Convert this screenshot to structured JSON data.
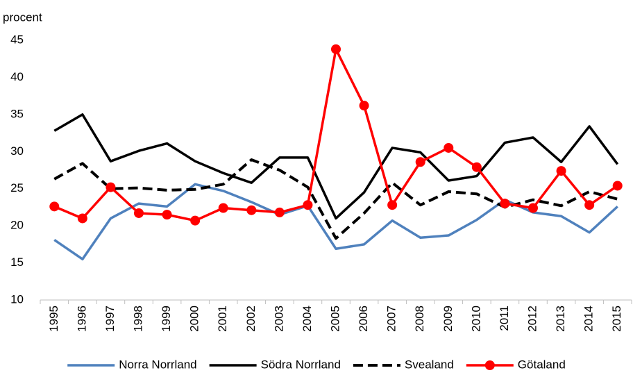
{
  "chart_data": {
    "type": "line",
    "y_label": "procent",
    "categories": [
      "1995",
      "1996",
      "1997",
      "1998",
      "1999",
      "2000",
      "2001",
      "2002",
      "2003",
      "2004",
      "2005",
      "2006",
      "2007",
      "2008",
      "2009",
      "2010",
      "2011",
      "2012",
      "2013",
      "2014",
      "2015"
    ],
    "ylim": [
      10,
      45
    ],
    "yticks": [
      10,
      15,
      20,
      25,
      30,
      35,
      40,
      45
    ],
    "grid": false,
    "legend": "bottom",
    "series": [
      {
        "name": "Norra Norrland",
        "color": "#4f81bd",
        "style": "solid",
        "values": [
          18.1,
          15.5,
          21,
          23,
          22.6,
          25.6,
          24.7,
          23.2,
          21.5,
          22.7,
          16.9,
          17.5,
          20.7,
          18.4,
          18.7,
          20.8,
          23.5,
          21.8,
          21.3,
          19.1,
          22.6
        ]
      },
      {
        "name": "Södra Norrland",
        "color": "#000000",
        "style": "solid",
        "values": [
          32.8,
          35,
          28.7,
          30.1,
          31.1,
          28.7,
          27.1,
          25.8,
          29.2,
          29.2,
          21,
          24.5,
          30.5,
          29.9,
          26.1,
          26.7,
          31.2,
          31.9,
          28.6,
          33.4,
          28.3
        ]
      },
      {
        "name": "Svealand",
        "color": "#000000",
        "style": "dashed",
        "values": [
          26.3,
          28.4,
          25,
          25.1,
          24.8,
          24.9,
          25.6,
          28.9,
          27.5,
          25.2,
          18.3,
          21.7,
          25.8,
          22.8,
          24.6,
          24.3,
          22.5,
          23.5,
          22.7,
          24.6,
          23.6
        ]
      },
      {
        "name": "Götaland",
        "color": "#ff0000",
        "style": "solid",
        "marker": "circle",
        "values": [
          22.6,
          21,
          25.2,
          21.7,
          21.5,
          20.7,
          22.4,
          22.1,
          21.8,
          22.8,
          43.8,
          36.2,
          22.8,
          28.6,
          30.5,
          27.9,
          23,
          22.4,
          27.4,
          22.8,
          25.4
        ]
      }
    ]
  }
}
